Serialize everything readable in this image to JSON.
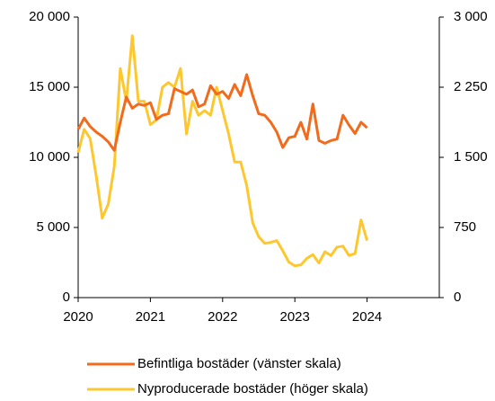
{
  "chart_data": {
    "type": "line",
    "x": [
      2020,
      2020.083,
      2020.167,
      2020.25,
      2020.333,
      2020.417,
      2020.5,
      2020.583,
      2020.667,
      2020.75,
      2020.833,
      2020.917,
      2021,
      2021.083,
      2021.167,
      2021.25,
      2021.333,
      2021.417,
      2021.5,
      2021.583,
      2021.667,
      2021.75,
      2021.833,
      2021.917,
      2022,
      2022.083,
      2022.167,
      2022.25,
      2022.333,
      2022.417,
      2022.5,
      2022.583,
      2022.667,
      2022.75,
      2022.833,
      2022.917,
      2023,
      2023.083,
      2023.167,
      2023.25,
      2023.333,
      2023.417,
      2023.5,
      2023.583,
      2023.667,
      2023.75,
      2023.833,
      2023.917,
      2024
    ],
    "series": [
      {
        "name": "Befintliga bostäder (vänster skala)",
        "color": "#f26b1d",
        "axis": "y",
        "values": [
          12000,
          12800,
          12200,
          11800,
          11500,
          11100,
          10500,
          12500,
          14300,
          13500,
          13800,
          13700,
          13900,
          12700,
          13000,
          13100,
          14900,
          14700,
          14500,
          14800,
          13600,
          13800,
          15100,
          14500,
          14700,
          14200,
          15200,
          14400,
          15900,
          14400,
          13100,
          13000,
          12500,
          11800,
          10700,
          11400,
          11500,
          12500,
          11300,
          13800,
          11200,
          11000,
          11200,
          11300,
          13000,
          12300,
          11700,
          12500,
          12100
        ]
      },
      {
        "name": "Nyproducerade bostäder (höger skala)",
        "color": "#fdc82f",
        "axis": "y2",
        "values": [
          1550,
          1800,
          1700,
          1300,
          850,
          1000,
          1400,
          2450,
          2100,
          2800,
          2100,
          2100,
          1850,
          1900,
          2250,
          2300,
          2250,
          2450,
          1750,
          2100,
          1950,
          2000,
          1950,
          2250,
          2000,
          1750,
          1450,
          1450,
          1200,
          800,
          650,
          580,
          590,
          610,
          500,
          380,
          340,
          350,
          420,
          460,
          370,
          490,
          450,
          540,
          550,
          450,
          470,
          830,
          610
        ]
      }
    ],
    "xlim": [
      2020,
      2025
    ],
    "xticks": [
      2020,
      2021,
      2022,
      2023,
      2024
    ],
    "ylim": [
      0,
      20000
    ],
    "yticks": [
      0,
      {
        "value": 5000,
        "label": "5 000"
      },
      {
        "value": 10000,
        "label": "10 000"
      },
      {
        "value": 15000,
        "label": "15 000"
      },
      {
        "value": 20000,
        "label": "20 000"
      }
    ],
    "y2lim": [
      0,
      3000
    ],
    "y2ticks": [
      0,
      750,
      {
        "value": 1500,
        "label": "1 500"
      },
      {
        "value": 2250,
        "label": "2 250"
      },
      {
        "value": 3000,
        "label": "3 000"
      }
    ]
  }
}
